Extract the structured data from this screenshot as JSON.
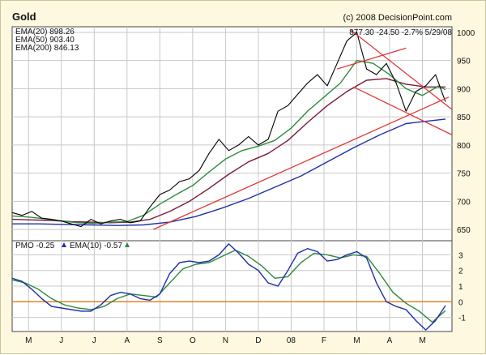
{
  "chart_data": [
    {
      "type": "line",
      "title": "Gold",
      "copyright": "(c) 2008 DecisionPoint.com",
      "last_quote": "877.30 -24.50 -2.7% 5/29/08",
      "legend": [
        "EMA(20) 898.26",
        "EMA(50) 903.40",
        "EMA(200) 846.13"
      ],
      "y_ticks": [
        650,
        700,
        750,
        800,
        850,
        900,
        950,
        1000
      ],
      "ylim": [
        630,
        1010
      ],
      "x_tick_labels": [
        "M",
        "J",
        "J",
        "A",
        "S",
        "O",
        "N",
        "D",
        "08",
        "F",
        "M",
        "A",
        "M"
      ],
      "x_tick_positions": [
        0.5,
        1.5,
        2.5,
        3.5,
        4.5,
        5.5,
        6.5,
        7.5,
        8.5,
        9.5,
        10.5,
        11.5,
        12.5
      ],
      "xlim": [
        0,
        13.4
      ],
      "grid": true,
      "series": [
        {
          "name": "Gold",
          "color": "#000000",
          "x": [
            0,
            0.3,
            0.6,
            0.9,
            1.2,
            1.5,
            1.8,
            2.1,
            2.4,
            2.7,
            3.0,
            3.3,
            3.6,
            3.9,
            4.2,
            4.5,
            4.8,
            5.1,
            5.4,
            5.7,
            6.0,
            6.3,
            6.6,
            6.9,
            7.2,
            7.5,
            7.8,
            8.1,
            8.4,
            8.7,
            9.0,
            9.3,
            9.6,
            9.9,
            10.2,
            10.5,
            10.8,
            11.1,
            11.4,
            11.7,
            12.0,
            12.3,
            12.6,
            12.9,
            13.2
          ],
          "values": [
            680,
            675,
            682,
            670,
            668,
            665,
            660,
            655,
            668,
            660,
            665,
            668,
            662,
            665,
            690,
            712,
            720,
            735,
            740,
            755,
            785,
            810,
            790,
            800,
            815,
            800,
            810,
            860,
            870,
            890,
            910,
            925,
            905,
            945,
            985,
            1000,
            935,
            925,
            945,
            910,
            860,
            895,
            905,
            925,
            877
          ]
        },
        {
          "name": "EMA(20)",
          "color": "#2e8b3e",
          "x": [
            0,
            0.5,
            1.0,
            1.5,
            2.0,
            2.5,
            3.0,
            3.5,
            4.0,
            4.5,
            5.0,
            5.5,
            6.0,
            6.5,
            7.0,
            7.5,
            8.0,
            8.5,
            9.0,
            9.5,
            10.0,
            10.5,
            11.0,
            11.5,
            12.0,
            12.5,
            13.0,
            13.2
          ],
          "values": [
            674,
            672,
            669,
            665,
            662,
            661,
            663,
            664,
            675,
            695,
            712,
            728,
            752,
            775,
            790,
            798,
            808,
            830,
            860,
            885,
            910,
            950,
            945,
            925,
            900,
            888,
            905,
            898
          ]
        },
        {
          "name": "EMA(50)",
          "color": "#7a1a3a",
          "x": [
            0,
            0.6,
            1.2,
            1.8,
            2.4,
            3.0,
            3.6,
            4.2,
            4.8,
            5.4,
            6.0,
            6.6,
            7.2,
            7.8,
            8.4,
            9.0,
            9.6,
            10.2,
            10.8,
            11.4,
            12.0,
            12.6,
            13.2
          ],
          "values": [
            668,
            667,
            666,
            664,
            663,
            662,
            663,
            668,
            682,
            700,
            723,
            748,
            770,
            785,
            808,
            840,
            870,
            895,
            915,
            918,
            908,
            903,
            903
          ]
        },
        {
          "name": "EMA(200)",
          "color": "#1f2fa8",
          "x": [
            0,
            0.8,
            1.6,
            2.4,
            3.2,
            4.0,
            4.8,
            5.6,
            6.4,
            7.2,
            8.0,
            8.8,
            9.6,
            10.4,
            11.2,
            12.0,
            12.6,
            13.2
          ],
          "values": [
            660,
            660,
            659,
            658,
            657,
            658,
            663,
            673,
            688,
            705,
            725,
            745,
            770,
            795,
            818,
            838,
            842,
            846
          ]
        }
      ],
      "trendlines": [
        {
          "color": "#e0393b",
          "x": [
            4.3,
            13.3
          ],
          "values": [
            650,
            885
          ]
        },
        {
          "color": "#e0393b",
          "x": [
            9.9,
            12.0
          ],
          "values": [
            935,
            972
          ]
        },
        {
          "color": "#e0393b",
          "x": [
            10.3,
            13.4
          ],
          "values": [
            1005,
            863
          ]
        },
        {
          "color": "#e0393b",
          "x": [
            10.4,
            13.4
          ],
          "values": [
            903,
            818
          ]
        }
      ]
    },
    {
      "type": "line",
      "legend": [
        "PMO -0.25",
        "EMA(10) -0.57"
      ],
      "y_ticks": [
        -1,
        0,
        1,
        2,
        3
      ],
      "ylim": [
        -1.9,
        3.9
      ],
      "zero_line_color": "#e07a10",
      "x_tick_labels": [
        "M",
        "J",
        "J",
        "A",
        "S",
        "O",
        "N",
        "D",
        "08",
        "F",
        "M",
        "A",
        "M"
      ],
      "xlim": [
        0,
        13.4
      ],
      "grid": true,
      "series": [
        {
          "name": "PMO",
          "color": "#1f2fa8",
          "x": [
            0,
            0.3,
            0.6,
            0.9,
            1.2,
            1.5,
            1.8,
            2.1,
            2.4,
            2.7,
            3.0,
            3.3,
            3.6,
            3.9,
            4.2,
            4.5,
            4.8,
            5.1,
            5.4,
            5.7,
            6.0,
            6.3,
            6.6,
            6.9,
            7.2,
            7.5,
            7.8,
            8.1,
            8.4,
            8.7,
            9.0,
            9.3,
            9.6,
            9.9,
            10.2,
            10.5,
            10.8,
            11.1,
            11.4,
            11.7,
            12.0,
            12.3,
            12.6,
            12.9,
            13.2
          ],
          "values": [
            1.5,
            1.3,
            0.8,
            0.2,
            -0.3,
            -0.4,
            -0.5,
            -0.6,
            -0.6,
            -0.2,
            0.4,
            0.6,
            0.5,
            0.2,
            0.1,
            0.5,
            1.8,
            2.5,
            2.6,
            2.5,
            2.6,
            3.0,
            3.7,
            3.1,
            2.4,
            2.0,
            1.2,
            1.0,
            2.0,
            3.1,
            3.4,
            3.2,
            2.6,
            2.7,
            3.0,
            3.2,
            2.8,
            1.2,
            0.0,
            -0.3,
            -0.5,
            -1.2,
            -1.8,
            -1.2,
            -0.25
          ]
        },
        {
          "name": "EMA(10)",
          "color": "#2e8b3e",
          "x": [
            0,
            0.4,
            0.8,
            1.2,
            1.6,
            2.0,
            2.4,
            2.8,
            3.2,
            3.6,
            4.0,
            4.4,
            4.8,
            5.2,
            5.6,
            6.0,
            6.4,
            6.8,
            7.2,
            7.6,
            8.0,
            8.4,
            8.8,
            9.2,
            9.6,
            10.0,
            10.4,
            10.8,
            11.2,
            11.6,
            12.0,
            12.4,
            12.8,
            13.2
          ],
          "values": [
            1.4,
            1.2,
            0.8,
            0.2,
            -0.2,
            -0.4,
            -0.5,
            -0.3,
            0.2,
            0.5,
            0.4,
            0.3,
            1.2,
            2.1,
            2.4,
            2.5,
            2.9,
            3.3,
            2.9,
            2.3,
            1.5,
            1.6,
            2.5,
            3.1,
            3.0,
            2.8,
            3.0,
            2.9,
            1.8,
            0.6,
            -0.1,
            -0.6,
            -1.3,
            -0.57
          ]
        }
      ]
    }
  ]
}
